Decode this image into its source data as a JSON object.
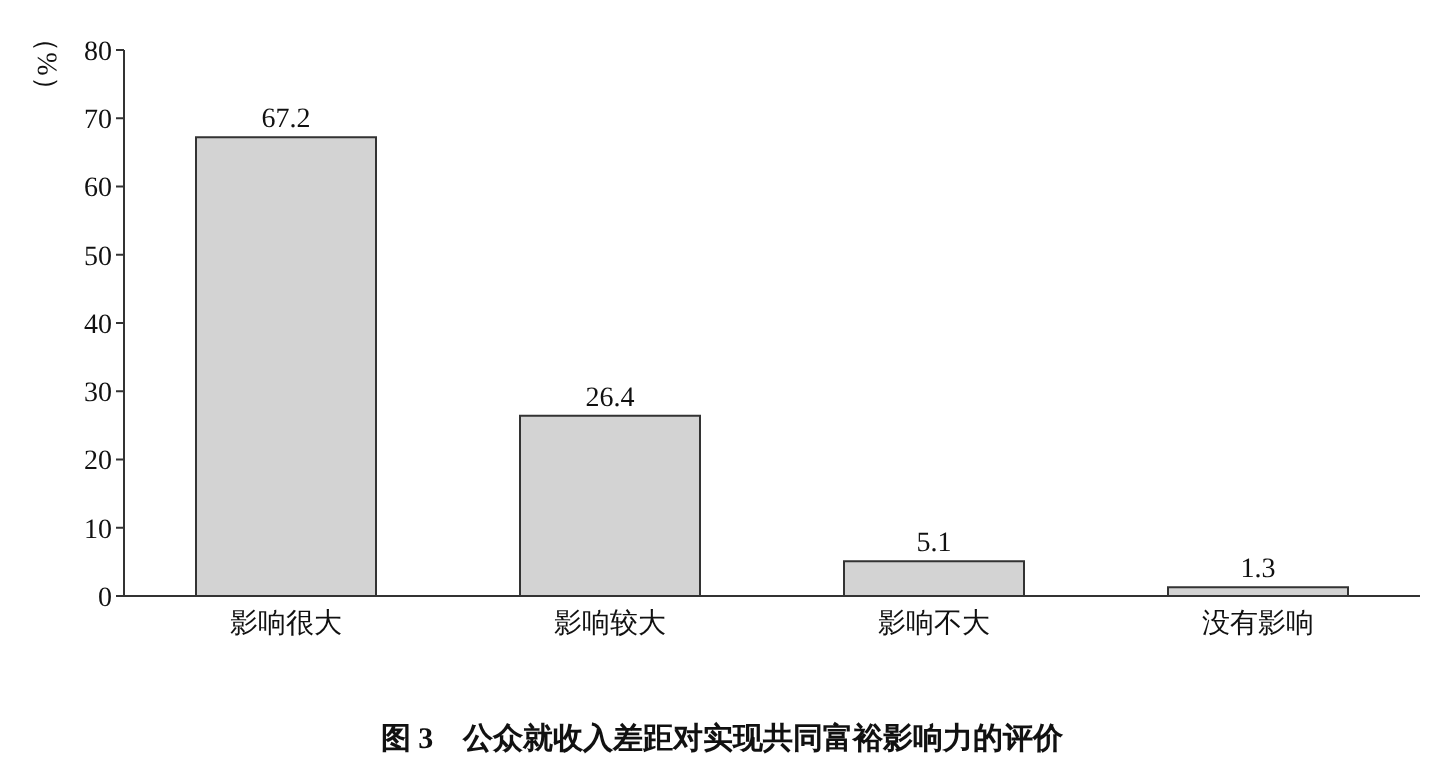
{
  "chart_data": {
    "type": "bar",
    "title": "图 3　公众就收入差距对实现共同富裕影响力的评价",
    "ylabel": "（%）",
    "categories": [
      "影响很大",
      "影响较大",
      "影响不大",
      "没有影响"
    ],
    "values": [
      67.2,
      26.4,
      5.1,
      1.3
    ],
    "color": "#d3d3d3",
    "ylim": [
      0,
      80
    ],
    "yticks": [
      0,
      10,
      20,
      30,
      40,
      50,
      60,
      70,
      80
    ],
    "grid": false,
    "data_labels": true
  }
}
